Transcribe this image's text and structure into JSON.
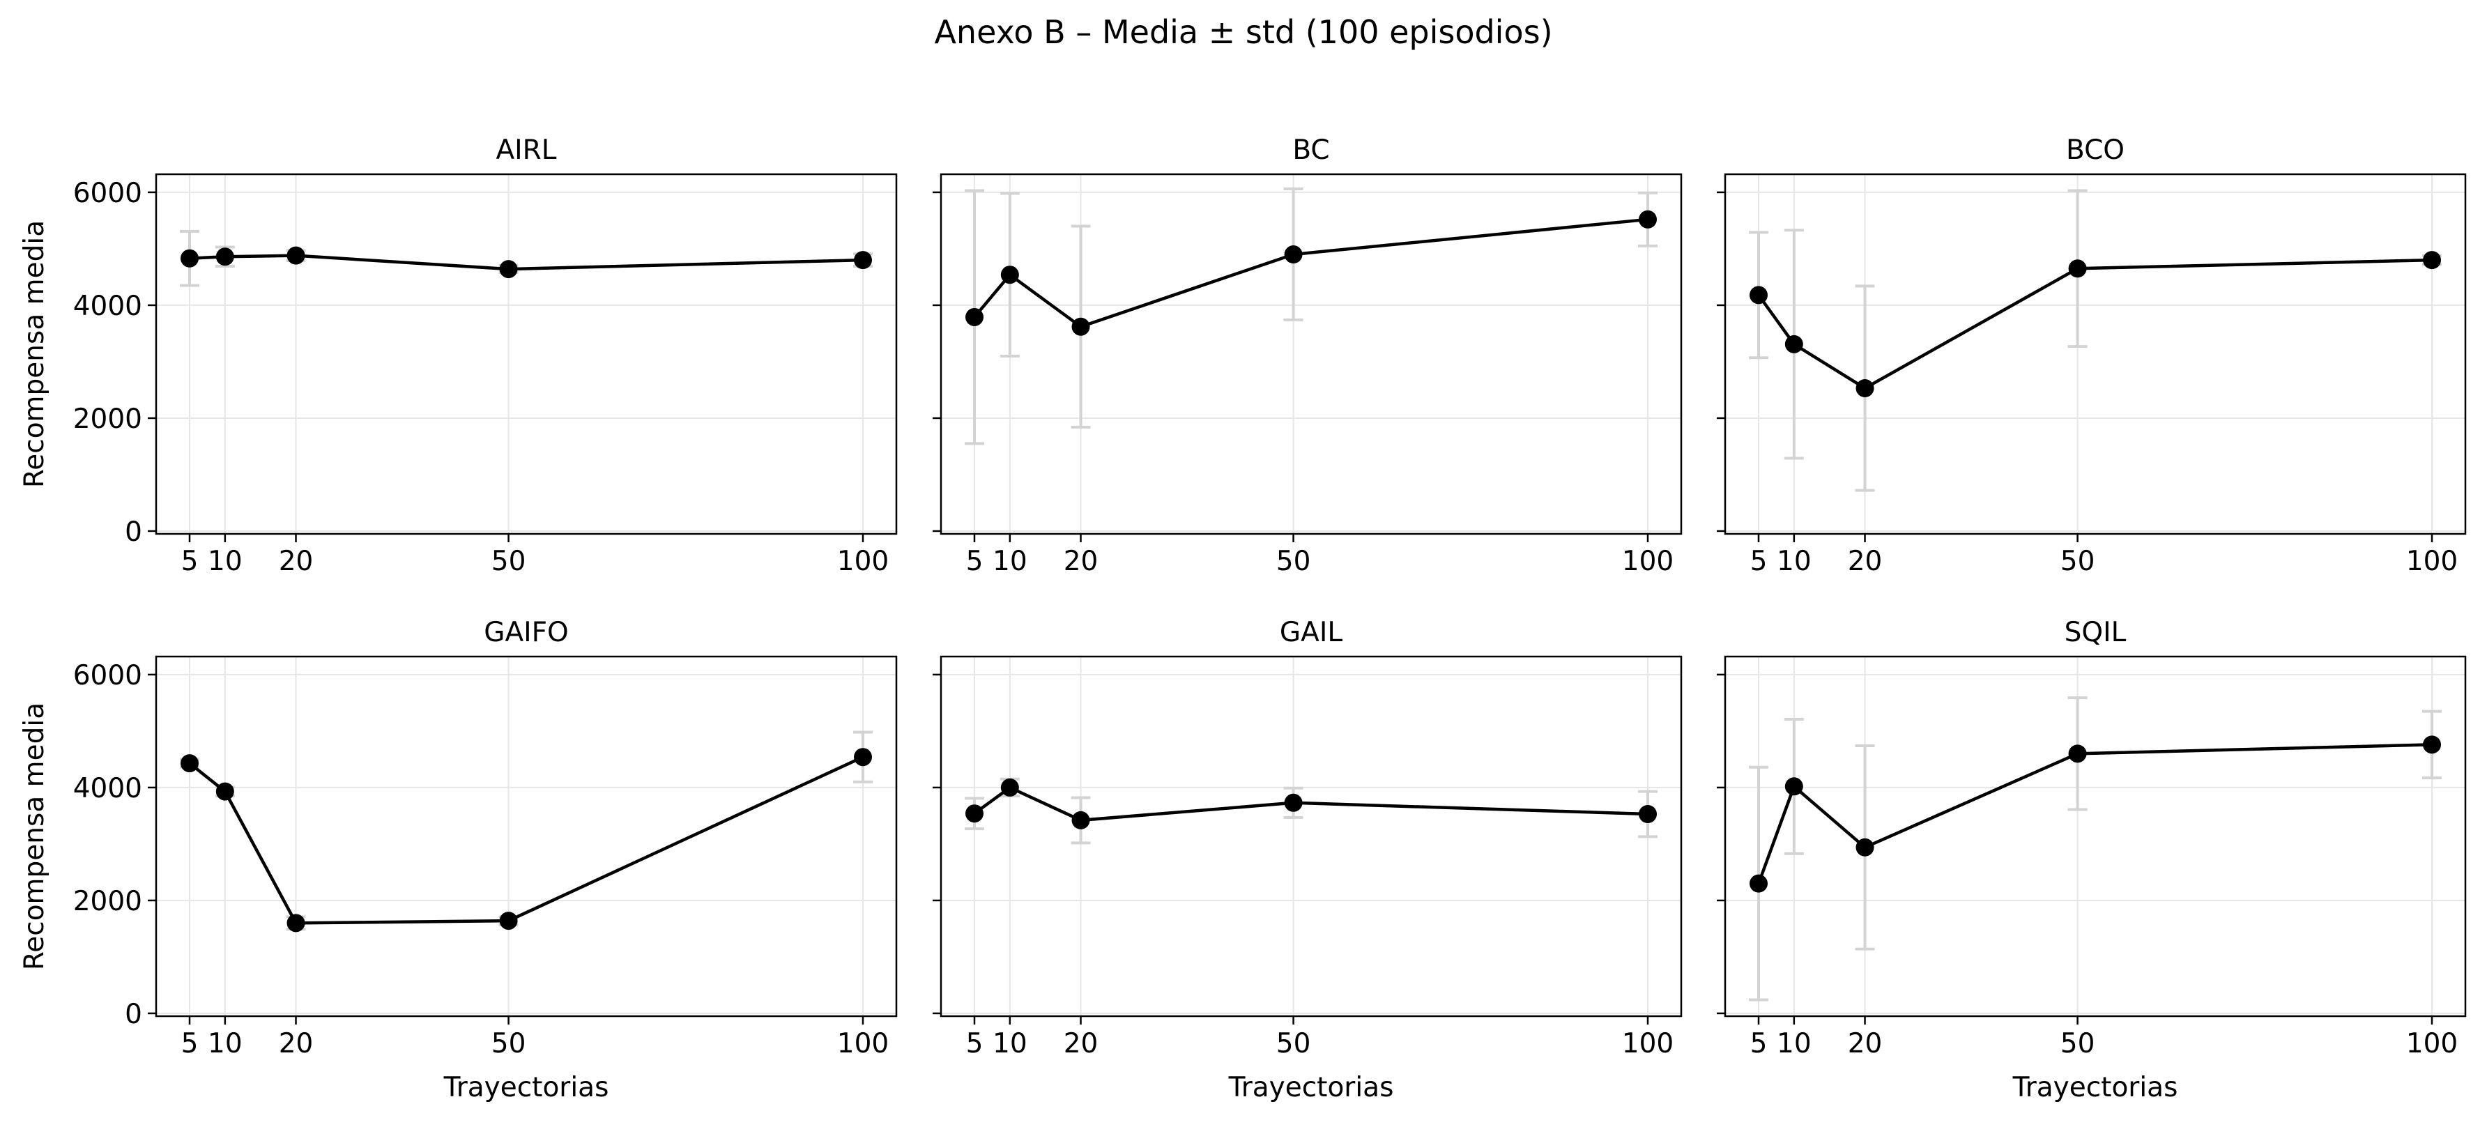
{
  "figure": {
    "title": "Anexo B – Media ± std (100 episodios)"
  },
  "style": {
    "line_color": "#000000",
    "errorbar_color": "#d3d3d3",
    "grid_color": "#e6e6e6",
    "axes_edge_color": "#000000"
  },
  "chart_data": [
    {
      "type": "line",
      "title": "AIRL",
      "xlabel": "",
      "ylabel": "Recompensa media",
      "x": [
        5,
        10,
        20,
        50,
        100
      ],
      "xticks": [
        "5",
        "10",
        "20",
        "50",
        "100"
      ],
      "yticks": [
        "0",
        "2000",
        "4000",
        "6000"
      ],
      "ylim": [
        -50,
        6320
      ],
      "grid": true,
      "series": [
        {
          "values": [
            4830,
            4860,
            4880,
            4640,
            4800
          ],
          "std": [
            480,
            170,
            90,
            60,
            110
          ]
        }
      ]
    },
    {
      "type": "line",
      "title": "BC",
      "xlabel": "",
      "ylabel": "",
      "x": [
        5,
        10,
        20,
        50,
        100
      ],
      "xticks": [
        "5",
        "10",
        "20",
        "50",
        "100"
      ],
      "yticks": [
        "0",
        "2000",
        "4000",
        "6000"
      ],
      "ylim": [
        -50,
        6320
      ],
      "grid": true,
      "series": [
        {
          "values": [
            3790,
            4540,
            3620,
            4900,
            5520
          ],
          "std": [
            2240,
            1440,
            1780,
            1160,
            470
          ]
        }
      ]
    },
    {
      "type": "line",
      "title": "BCO",
      "xlabel": "",
      "ylabel": "",
      "x": [
        5,
        10,
        20,
        50,
        100
      ],
      "xticks": [
        "5",
        "10",
        "20",
        "50",
        "100"
      ],
      "yticks": [
        "0",
        "2000",
        "4000",
        "6000"
      ],
      "ylim": [
        -50,
        6320
      ],
      "grid": true,
      "series": [
        {
          "values": [
            4180,
            3310,
            2530,
            4650,
            4800
          ],
          "std": [
            1110,
            2020,
            1810,
            1380,
            80
          ]
        }
      ]
    },
    {
      "type": "line",
      "title": "GAIFO",
      "xlabel": "Trayectorias",
      "ylabel": "Recompensa media",
      "x": [
        5,
        10,
        20,
        50,
        100
      ],
      "xticks": [
        "5",
        "10",
        "20",
        "50",
        "100"
      ],
      "yticks": [
        "0",
        "2000",
        "4000",
        "6000"
      ],
      "ylim": [
        -50,
        6320
      ],
      "grid": true,
      "series": [
        {
          "values": [
            4430,
            3930,
            1600,
            1640,
            4540
          ],
          "std": [
            70,
            80,
            110,
            70,
            440
          ]
        }
      ]
    },
    {
      "type": "line",
      "title": "GAIL",
      "xlabel": "Trayectorias",
      "ylabel": "",
      "x": [
        5,
        10,
        20,
        50,
        100
      ],
      "xticks": [
        "5",
        "10",
        "20",
        "50",
        "100"
      ],
      "yticks": [
        "0",
        "2000",
        "4000",
        "6000"
      ],
      "ylim": [
        -50,
        6320
      ],
      "grid": true,
      "series": [
        {
          "values": [
            3540,
            4000,
            3420,
            3730,
            3530
          ],
          "std": [
            270,
            150,
            400,
            260,
            400
          ]
        }
      ]
    },
    {
      "type": "line",
      "title": "SQIL",
      "xlabel": "Trayectorias",
      "ylabel": "",
      "x": [
        5,
        10,
        20,
        50,
        100
      ],
      "xticks": [
        "5",
        "10",
        "20",
        "50",
        "100"
      ],
      "yticks": [
        "0",
        "2000",
        "4000",
        "6000"
      ],
      "ylim": [
        -50,
        6320
      ],
      "grid": true,
      "series": [
        {
          "values": [
            2300,
            4020,
            2940,
            4600,
            4760
          ],
          "std": [
            2060,
            1190,
            1800,
            990,
            590
          ]
        }
      ]
    }
  ]
}
